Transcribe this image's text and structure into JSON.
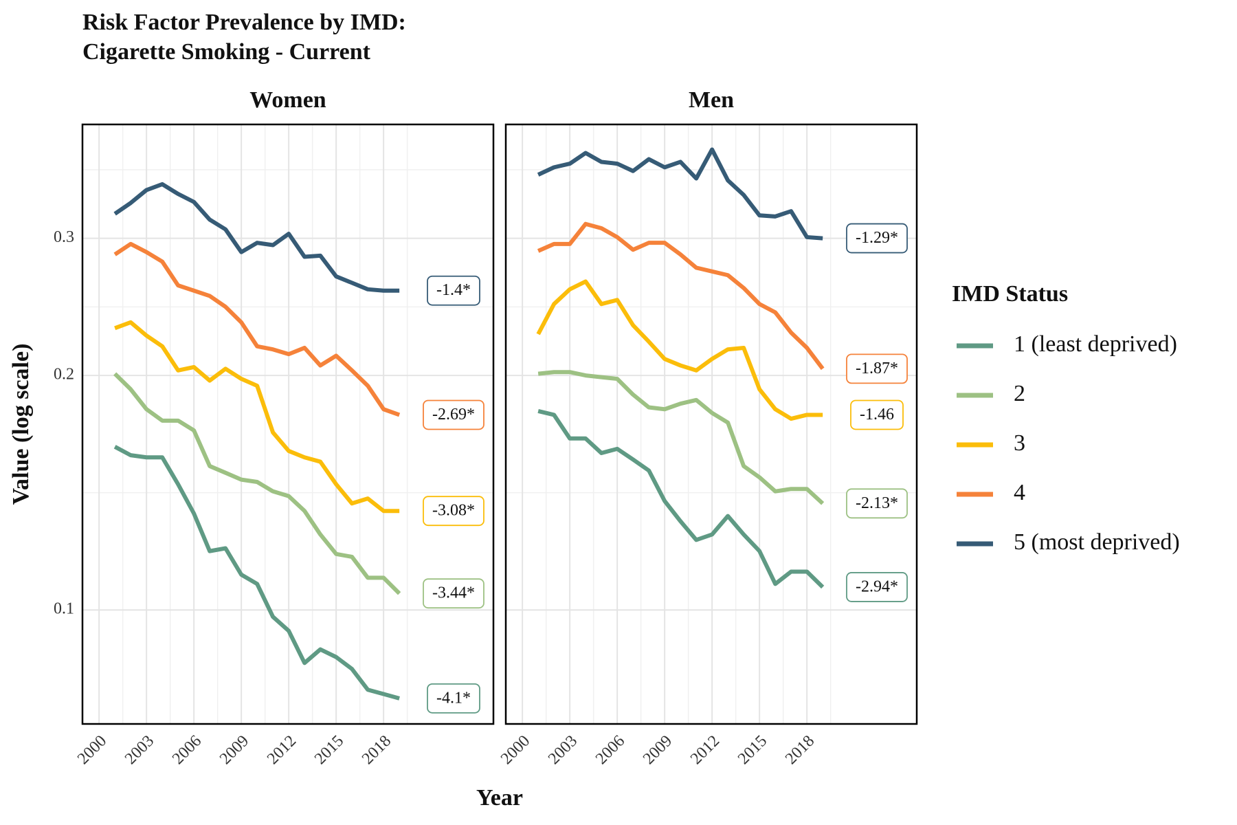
{
  "figure": {
    "title": [
      "Risk Factor Prevalence by IMD:",
      "Cigarette Smoking - Current"
    ],
    "xlabel": "Year",
    "ylabel": "Value (log scale)",
    "legend_title": "IMD Status"
  },
  "chart_data": [
    {
      "type": "line",
      "panel_title": "Women",
      "log_y": true,
      "grid": true,
      "x": [
        2001,
        2002,
        2003,
        2004,
        2005,
        2006,
        2007,
        2008,
        2009,
        2010,
        2011,
        2012,
        2013,
        2014,
        2015,
        2016,
        2017,
        2018,
        2019
      ],
      "xlim": [
        1998.95,
        2024.95
      ],
      "xticks": [
        2000,
        2003,
        2006,
        2009,
        2012,
        2015,
        2018
      ],
      "ylim": [
        0.0714,
        0.42
      ],
      "yticks": [
        0.1,
        0.2,
        0.3
      ],
      "series": [
        {
          "name": "1 (least deprived)",
          "color": "#5f9a84",
          "annotation": "-4.1*",
          "values": [
            0.162,
            0.158,
            0.157,
            0.157,
            0.145,
            0.133,
            0.119,
            0.12,
            0.111,
            0.108,
            0.098,
            0.094,
            0.0855,
            0.089,
            0.087,
            0.084,
            0.079,
            0.078,
            0.077
          ]
        },
        {
          "name": "2",
          "color": "#9dc183",
          "annotation": "-3.44*",
          "values": [
            0.201,
            0.192,
            0.181,
            0.175,
            0.175,
            0.17,
            0.153,
            0.15,
            0.147,
            0.146,
            0.142,
            0.14,
            0.134,
            0.125,
            0.118,
            0.117,
            0.11,
            0.11,
            0.105
          ]
        },
        {
          "name": "3",
          "color": "#fbbd0a",
          "annotation": "-3.08*",
          "values": [
            0.23,
            0.234,
            0.225,
            0.218,
            0.203,
            0.205,
            0.197,
            0.204,
            0.198,
            0.194,
            0.169,
            0.16,
            0.157,
            0.155,
            0.145,
            0.137,
            0.139,
            0.134,
            0.134
          ]
        },
        {
          "name": "4",
          "color": "#f5823a",
          "annotation": "-2.69*",
          "values": [
            0.286,
            0.295,
            0.288,
            0.28,
            0.261,
            0.257,
            0.253,
            0.245,
            0.234,
            0.218,
            0.216,
            0.213,
            0.217,
            0.206,
            0.212,
            0.203,
            0.194,
            0.181,
            0.178
          ]
        },
        {
          "name": "5 (most deprived)",
          "color": "#365b76",
          "annotation": "-1.4*",
          "values": [
            0.3225,
            0.333,
            0.346,
            0.352,
            0.342,
            0.334,
            0.317,
            0.308,
            0.288,
            0.296,
            0.294,
            0.304,
            0.284,
            0.285,
            0.268,
            0.263,
            0.258,
            0.257,
            0.257
          ]
        }
      ]
    },
    {
      "type": "line",
      "panel_title": "Men",
      "log_y": true,
      "grid": true,
      "x": [
        2001,
        2002,
        2003,
        2004,
        2005,
        2006,
        2007,
        2008,
        2009,
        2010,
        2011,
        2012,
        2013,
        2014,
        2015,
        2016,
        2017,
        2018,
        2019
      ],
      "xlim": [
        1998.95,
        2024.95
      ],
      "xticks": [
        2000,
        2003,
        2006,
        2009,
        2012,
        2015,
        2018
      ],
      "ylim": [
        0.0714,
        0.42
      ],
      "yticks": [
        0.1,
        0.2,
        0.3
      ],
      "series": [
        {
          "name": "1 (least deprived)",
          "color": "#5f9a84",
          "annotation": "-2.94*",
          "values": [
            0.18,
            0.178,
            0.166,
            0.166,
            0.159,
            0.161,
            0.156,
            0.151,
            0.138,
            0.13,
            0.123,
            0.125,
            0.132,
            0.125,
            0.119,
            0.108,
            0.112,
            0.112,
            0.107
          ]
        },
        {
          "name": "2",
          "color": "#9dc183",
          "annotation": "-2.13*",
          "values": [
            0.201,
            0.202,
            0.202,
            0.2,
            0.199,
            0.198,
            0.189,
            0.182,
            0.181,
            0.184,
            0.186,
            0.179,
            0.174,
            0.153,
            0.148,
            0.142,
            0.143,
            0.143,
            0.137
          ]
        },
        {
          "name": "3",
          "color": "#fbbd0a",
          "annotation": "-1.46",
          "values": [
            0.226,
            0.247,
            0.258,
            0.264,
            0.247,
            0.25,
            0.232,
            0.221,
            0.21,
            0.206,
            0.203,
            0.21,
            0.216,
            0.217,
            0.192,
            0.181,
            0.176,
            0.178,
            0.178
          ]
        },
        {
          "name": "4",
          "color": "#f5823a",
          "annotation": "-1.87*",
          "values": [
            0.289,
            0.295,
            0.295,
            0.313,
            0.309,
            0.301,
            0.29,
            0.296,
            0.296,
            0.286,
            0.275,
            0.272,
            0.269,
            0.259,
            0.247,
            0.241,
            0.227,
            0.217,
            0.204
          ]
        },
        {
          "name": "5 (most deprived)",
          "color": "#365b76",
          "annotation": "-1.29*",
          "values": [
            0.362,
            0.37,
            0.374,
            0.386,
            0.376,
            0.374,
            0.366,
            0.379,
            0.37,
            0.376,
            0.358,
            0.39,
            0.356,
            0.341,
            0.321,
            0.32,
            0.325,
            0.301,
            0.3
          ]
        }
      ]
    }
  ]
}
